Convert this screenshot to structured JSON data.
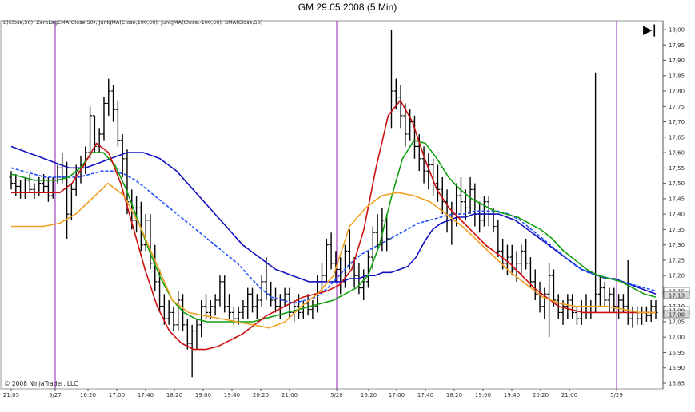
{
  "title": "GM  29.05.2008 (5 Min)",
  "legend": "E(Close,50),  ZeroLagEMA(Close,50),  JunkJMA(Close,100,50),  JunkJMA(Close,-100,50),  SMA(Close,50)",
  "copyright": "© 2008 NinjaTrader, LLC",
  "play_button_symbol": "▶|",
  "chart_data": {
    "type": "line",
    "subtype": "ohlc-bars-with-indicators",
    "ylim": [
      16.85,
      18.02
    ],
    "y_ticks": [
      "18,00",
      "17,95",
      "17,90",
      "17,85",
      "17,80",
      "17,75",
      "17,70",
      "17,65",
      "17,60",
      "17,55",
      "17,50",
      "17,45",
      "17,40",
      "17,35",
      "17,30",
      "17,25",
      "17,20",
      "17,15",
      "17,10",
      "17,05",
      "17,00",
      "16,95",
      "16,90",
      "16,85"
    ],
    "x_ticks": [
      "21:05",
      "5/27",
      "16:20",
      "17:00",
      "17:40",
      "18:20",
      "19:00",
      "19:40",
      "20:20",
      "21:00",
      "5/28",
      "16:20",
      "17:00",
      "17:40",
      "18:20",
      "19:00",
      "19:40",
      "20:20",
      "21:00",
      "5/29"
    ],
    "session_markers": [
      "5/27",
      "5/28",
      "5/29"
    ],
    "price_labels": [
      "17,15",
      "17,13",
      "17,09",
      "17,08"
    ],
    "grid": false,
    "price_bars": [
      [
        17.52,
        17.54,
        17.48,
        17.5
      ],
      [
        17.5,
        17.53,
        17.46,
        17.49
      ],
      [
        17.49,
        17.51,
        17.45,
        17.47
      ],
      [
        17.47,
        17.52,
        17.45,
        17.51
      ],
      [
        17.51,
        17.53,
        17.47,
        17.48
      ],
      [
        17.48,
        17.5,
        17.45,
        17.47
      ],
      [
        17.47,
        17.52,
        17.46,
        17.5
      ],
      [
        17.5,
        17.53,
        17.47,
        17.49
      ],
      [
        17.49,
        17.52,
        17.44,
        17.46
      ],
      [
        17.46,
        17.52,
        17.45,
        17.51
      ],
      [
        17.51,
        17.56,
        17.5,
        17.55
      ],
      [
        17.55,
        17.6,
        17.5,
        17.52
      ],
      [
        17.52,
        17.57,
        17.32,
        17.4
      ],
      [
        17.4,
        17.5,
        17.38,
        17.48
      ],
      [
        17.48,
        17.56,
        17.46,
        17.54
      ],
      [
        17.54,
        17.59,
        17.5,
        17.56
      ],
      [
        17.56,
        17.62,
        17.53,
        17.6
      ],
      [
        17.6,
        17.75,
        17.58,
        17.72
      ],
      [
        17.72,
        17.72,
        17.6,
        17.62
      ],
      [
        17.62,
        17.68,
        17.6,
        17.66
      ],
      [
        17.66,
        17.78,
        17.64,
        17.76
      ],
      [
        17.76,
        17.84,
        17.72,
        17.8
      ],
      [
        17.8,
        17.82,
        17.7,
        17.74
      ],
      [
        17.74,
        17.77,
        17.62,
        17.64
      ],
      [
        17.64,
        17.66,
        17.52,
        17.58
      ],
      [
        17.58,
        17.61,
        17.4,
        17.44
      ],
      [
        17.44,
        17.48,
        17.35,
        17.38
      ],
      [
        17.38,
        17.46,
        17.34,
        17.42
      ],
      [
        17.42,
        17.44,
        17.28,
        17.3
      ],
      [
        17.3,
        17.4,
        17.28,
        17.38
      ],
      [
        17.38,
        17.4,
        17.22,
        17.24
      ],
      [
        17.24,
        17.3,
        17.15,
        17.18
      ],
      [
        17.18,
        17.22,
        17.08,
        17.1
      ],
      [
        17.1,
        17.14,
        17.04,
        17.06
      ],
      [
        17.06,
        17.12,
        17.04,
        17.08
      ],
      [
        17.08,
        17.1,
        17.02,
        17.04
      ],
      [
        17.04,
        17.15,
        17.02,
        17.12
      ],
      [
        17.12,
        17.14,
        17.02,
        17.04
      ],
      [
        17.04,
        17.06,
        16.96,
        16.98
      ],
      [
        16.98,
        17.04,
        16.87,
        17.02
      ],
      [
        17.02,
        17.06,
        16.96,
        17.04
      ],
      [
        17.04,
        17.12,
        17.0,
        17.1
      ],
      [
        17.1,
        17.14,
        17.06,
        17.08
      ],
      [
        17.08,
        17.12,
        17.06,
        17.1
      ],
      [
        17.1,
        17.14,
        17.07,
        17.12
      ],
      [
        17.12,
        17.2,
        17.1,
        17.18
      ],
      [
        17.18,
        17.2,
        17.08,
        17.1
      ],
      [
        17.1,
        17.14,
        17.06,
        17.08
      ],
      [
        17.08,
        17.1,
        17.04,
        17.06
      ],
      [
        17.06,
        17.1,
        17.04,
        17.08
      ],
      [
        17.08,
        17.12,
        17.06,
        17.1
      ],
      [
        17.1,
        17.16,
        17.06,
        17.14
      ],
      [
        17.14,
        17.16,
        17.08,
        17.1
      ],
      [
        17.1,
        17.14,
        17.06,
        17.12
      ],
      [
        17.12,
        17.2,
        17.1,
        17.18
      ],
      [
        17.18,
        17.26,
        17.12,
        17.14
      ],
      [
        17.14,
        17.18,
        17.1,
        17.12
      ],
      [
        17.12,
        17.16,
        17.08,
        17.1
      ],
      [
        17.1,
        17.14,
        17.06,
        17.12
      ],
      [
        17.12,
        17.16,
        17.1,
        17.14
      ],
      [
        17.14,
        17.16,
        17.06,
        17.08
      ],
      [
        17.08,
        17.12,
        17.05,
        17.1
      ],
      [
        17.1,
        17.14,
        17.06,
        17.08
      ],
      [
        17.08,
        17.12,
        17.06,
        17.11
      ],
      [
        17.11,
        17.14,
        17.07,
        17.09
      ],
      [
        17.09,
        17.12,
        17.06,
        17.1
      ],
      [
        17.1,
        17.2,
        17.08,
        17.18
      ],
      [
        17.18,
        17.24,
        17.14,
        17.2
      ],
      [
        17.2,
        17.32,
        17.18,
        17.3
      ],
      [
        17.3,
        17.34,
        17.22,
        17.24
      ],
      [
        17.24,
        17.28,
        17.18,
        17.22
      ],
      [
        17.22,
        17.26,
        17.14,
        17.18
      ],
      [
        17.18,
        17.3,
        17.16,
        17.28
      ],
      [
        17.28,
        17.35,
        17.22,
        17.24
      ],
      [
        17.24,
        17.26,
        17.16,
        17.2
      ],
      [
        17.2,
        17.24,
        17.14,
        17.16
      ],
      [
        17.16,
        17.22,
        17.12,
        17.18
      ],
      [
        17.18,
        17.28,
        17.16,
        17.26
      ],
      [
        17.26,
        17.36,
        17.22,
        17.34
      ],
      [
        17.34,
        17.4,
        17.28,
        17.3
      ],
      [
        17.3,
        17.42,
        17.28,
        17.38
      ],
      [
        17.38,
        17.4,
        17.28,
        17.32
      ],
      [
        17.32,
        18.0,
        17.68,
        17.8
      ],
      [
        17.8,
        17.84,
        17.74,
        17.78
      ],
      [
        17.78,
        17.82,
        17.68,
        17.72
      ],
      [
        17.72,
        17.76,
        17.62,
        17.66
      ],
      [
        17.66,
        17.74,
        17.64,
        17.7
      ],
      [
        17.7,
        17.72,
        17.58,
        17.62
      ],
      [
        17.62,
        17.66,
        17.54,
        17.58
      ],
      [
        17.58,
        17.62,
        17.5,
        17.54
      ],
      [
        17.54,
        17.6,
        17.48,
        17.56
      ],
      [
        17.56,
        17.58,
        17.46,
        17.5
      ],
      [
        17.5,
        17.56,
        17.44,
        17.48
      ],
      [
        17.48,
        17.52,
        17.4,
        17.44
      ],
      [
        17.44,
        17.48,
        17.34,
        17.38
      ],
      [
        17.38,
        17.44,
        17.3,
        17.4
      ],
      [
        17.4,
        17.5,
        17.36,
        17.46
      ],
      [
        17.46,
        17.52,
        17.4,
        17.44
      ],
      [
        17.44,
        17.48,
        17.38,
        17.42
      ],
      [
        17.42,
        17.52,
        17.4,
        17.48
      ],
      [
        17.48,
        17.5,
        17.36,
        17.4
      ],
      [
        17.4,
        17.44,
        17.34,
        17.38
      ],
      [
        17.38,
        17.46,
        17.36,
        17.44
      ],
      [
        17.44,
        17.46,
        17.36,
        17.4
      ],
      [
        17.4,
        17.42,
        17.34,
        17.36
      ],
      [
        17.36,
        17.38,
        17.26,
        17.28
      ],
      [
        17.28,
        17.32,
        17.22,
        17.24
      ],
      [
        17.24,
        17.3,
        17.2,
        17.26
      ],
      [
        17.26,
        17.3,
        17.2,
        17.22
      ],
      [
        17.22,
        17.28,
        17.18,
        17.24
      ],
      [
        17.24,
        17.3,
        17.2,
        17.28
      ],
      [
        17.28,
        17.32,
        17.22,
        17.24
      ],
      [
        17.24,
        17.26,
        17.16,
        17.18
      ],
      [
        17.18,
        17.22,
        17.12,
        17.14
      ],
      [
        17.14,
        17.18,
        17.08,
        17.1
      ],
      [
        17.1,
        17.16,
        17.06,
        17.14
      ],
      [
        17.14,
        17.24,
        17.0,
        17.2
      ],
      [
        17.2,
        17.22,
        17.1,
        17.12
      ],
      [
        17.12,
        17.14,
        17.06,
        17.08
      ],
      [
        17.08,
        17.12,
        17.04,
        17.1
      ],
      [
        17.1,
        17.14,
        17.06,
        17.12
      ],
      [
        17.12,
        17.14,
        17.06,
        17.08
      ],
      [
        17.08,
        17.1,
        17.04,
        17.06
      ],
      [
        17.06,
        17.12,
        17.04,
        17.1
      ],
      [
        17.1,
        17.14,
        17.06,
        17.08
      ],
      [
        17.08,
        17.12,
        17.06,
        17.1
      ],
      [
        17.1,
        17.86,
        17.08,
        17.14
      ],
      [
        17.14,
        17.2,
        17.1,
        17.16
      ],
      [
        17.16,
        17.18,
        17.1,
        17.12
      ],
      [
        17.12,
        17.16,
        17.08,
        17.14
      ],
      [
        17.14,
        17.16,
        17.08,
        17.1
      ],
      [
        17.1,
        17.14,
        17.06,
        17.12
      ],
      [
        17.12,
        17.14,
        17.08,
        17.1
      ],
      [
        17.1,
        17.25,
        17.04,
        17.06
      ],
      [
        17.06,
        17.1,
        17.03,
        17.08
      ],
      [
        17.08,
        17.1,
        17.04,
        17.06
      ],
      [
        17.06,
        17.1,
        17.04,
        17.08
      ],
      [
        17.08,
        17.1,
        17.05,
        17.07
      ],
      [
        17.07,
        17.12,
        17.05,
        17.1
      ],
      [
        17.1,
        17.12,
        17.06,
        17.08
      ]
    ],
    "series": [
      {
        "color": "#1010c0",
        "values": [
          17.62,
          17.61,
          17.6,
          17.59,
          17.58,
          17.57,
          17.56,
          17.55,
          17.55,
          17.55,
          17.56,
          17.57,
          17.58,
          17.59,
          17.6,
          17.6,
          17.6,
          17.59,
          17.58,
          17.56,
          17.54,
          17.51,
          17.48,
          17.45,
          17.42,
          17.39,
          17.36,
          17.33,
          17.3,
          17.28,
          17.26,
          17.24,
          17.22,
          17.21,
          17.2,
          17.19,
          17.18,
          17.18,
          17.18,
          17.18,
          17.18,
          17.19,
          17.19,
          17.2,
          17.2,
          17.21,
          17.21,
          17.22,
          17.23,
          17.26,
          17.31,
          17.35,
          17.37,
          17.38,
          17.39,
          17.39,
          17.4,
          17.4,
          17.4,
          17.4,
          17.39,
          17.38,
          17.36,
          17.34,
          17.32,
          17.3,
          17.28,
          17.26,
          17.24,
          17.22,
          17.21,
          17.2,
          17.19,
          17.19,
          17.18,
          17.17,
          17.16,
          17.15,
          17.14
        ]
      },
      {
        "color": "#2050ff",
        "dashed": true,
        "values": [
          17.55,
          17.54,
          17.53,
          17.52,
          17.52,
          17.52,
          17.52,
          17.53,
          17.54,
          17.54,
          17.53,
          17.51,
          17.48,
          17.45,
          17.42,
          17.39,
          17.36,
          17.33,
          17.3,
          17.27,
          17.24,
          17.2,
          17.16,
          17.13,
          17.12,
          17.11,
          17.12,
          17.13,
          17.16,
          17.2,
          17.24,
          17.27,
          17.29,
          17.31,
          17.33,
          17.35,
          17.37,
          17.38,
          17.39,
          17.4,
          17.4,
          17.41,
          17.41,
          17.41,
          17.4,
          17.38,
          17.35,
          17.32,
          17.29,
          17.26,
          17.23,
          17.21,
          17.2,
          17.19,
          17.18,
          17.17,
          17.16,
          17.15
        ]
      },
      {
        "color": "#10a010",
        "values": [
          17.53,
          17.52,
          17.51,
          17.51,
          17.51,
          17.52,
          17.55,
          17.6,
          17.6,
          17.56,
          17.48,
          17.38,
          17.28,
          17.19,
          17.12,
          17.08,
          17.06,
          17.05,
          17.05,
          17.05,
          17.05,
          17.05,
          17.06,
          17.07,
          17.08,
          17.09,
          17.1,
          17.11,
          17.12,
          17.14,
          17.16,
          17.2,
          17.3,
          17.45,
          17.58,
          17.64,
          17.63,
          17.58,
          17.52,
          17.48,
          17.45,
          17.43,
          17.41,
          17.4,
          17.39,
          17.37,
          17.35,
          17.32,
          17.28,
          17.25,
          17.22,
          17.2,
          17.19,
          17.18,
          17.16,
          17.14,
          17.13
        ]
      },
      {
        "color": "#cc1010",
        "values": [
          17.47,
          17.47,
          17.47,
          17.47,
          17.47,
          17.5,
          17.56,
          17.63,
          17.6,
          17.5,
          17.36,
          17.22,
          17.1,
          17.02,
          16.98,
          16.96,
          16.96,
          16.97,
          16.99,
          17.01,
          17.04,
          17.07,
          17.09,
          17.11,
          17.13,
          17.14,
          17.15,
          17.17,
          17.22,
          17.35,
          17.55,
          17.72,
          17.77,
          17.7,
          17.58,
          17.48,
          17.42,
          17.38,
          17.34,
          17.3,
          17.27,
          17.24,
          17.2,
          17.16,
          17.13,
          17.1,
          17.09,
          17.08,
          17.08,
          17.08,
          17.08,
          17.08,
          17.08,
          17.08
        ]
      },
      {
        "color": "#f0a020",
        "values": [
          17.36,
          17.36,
          17.36,
          17.37,
          17.4,
          17.45,
          17.5,
          17.46,
          17.36,
          17.24,
          17.12,
          17.08,
          17.07,
          17.06,
          17.05,
          17.04,
          17.03,
          17.05,
          17.1,
          17.14,
          17.2,
          17.36,
          17.42,
          17.46,
          17.47,
          17.46,
          17.44,
          17.4,
          17.36,
          17.31,
          17.26,
          17.21,
          17.17,
          17.13,
          17.11,
          17.1,
          17.1,
          17.1,
          17.09,
          17.08,
          17.08
        ]
      }
    ]
  }
}
